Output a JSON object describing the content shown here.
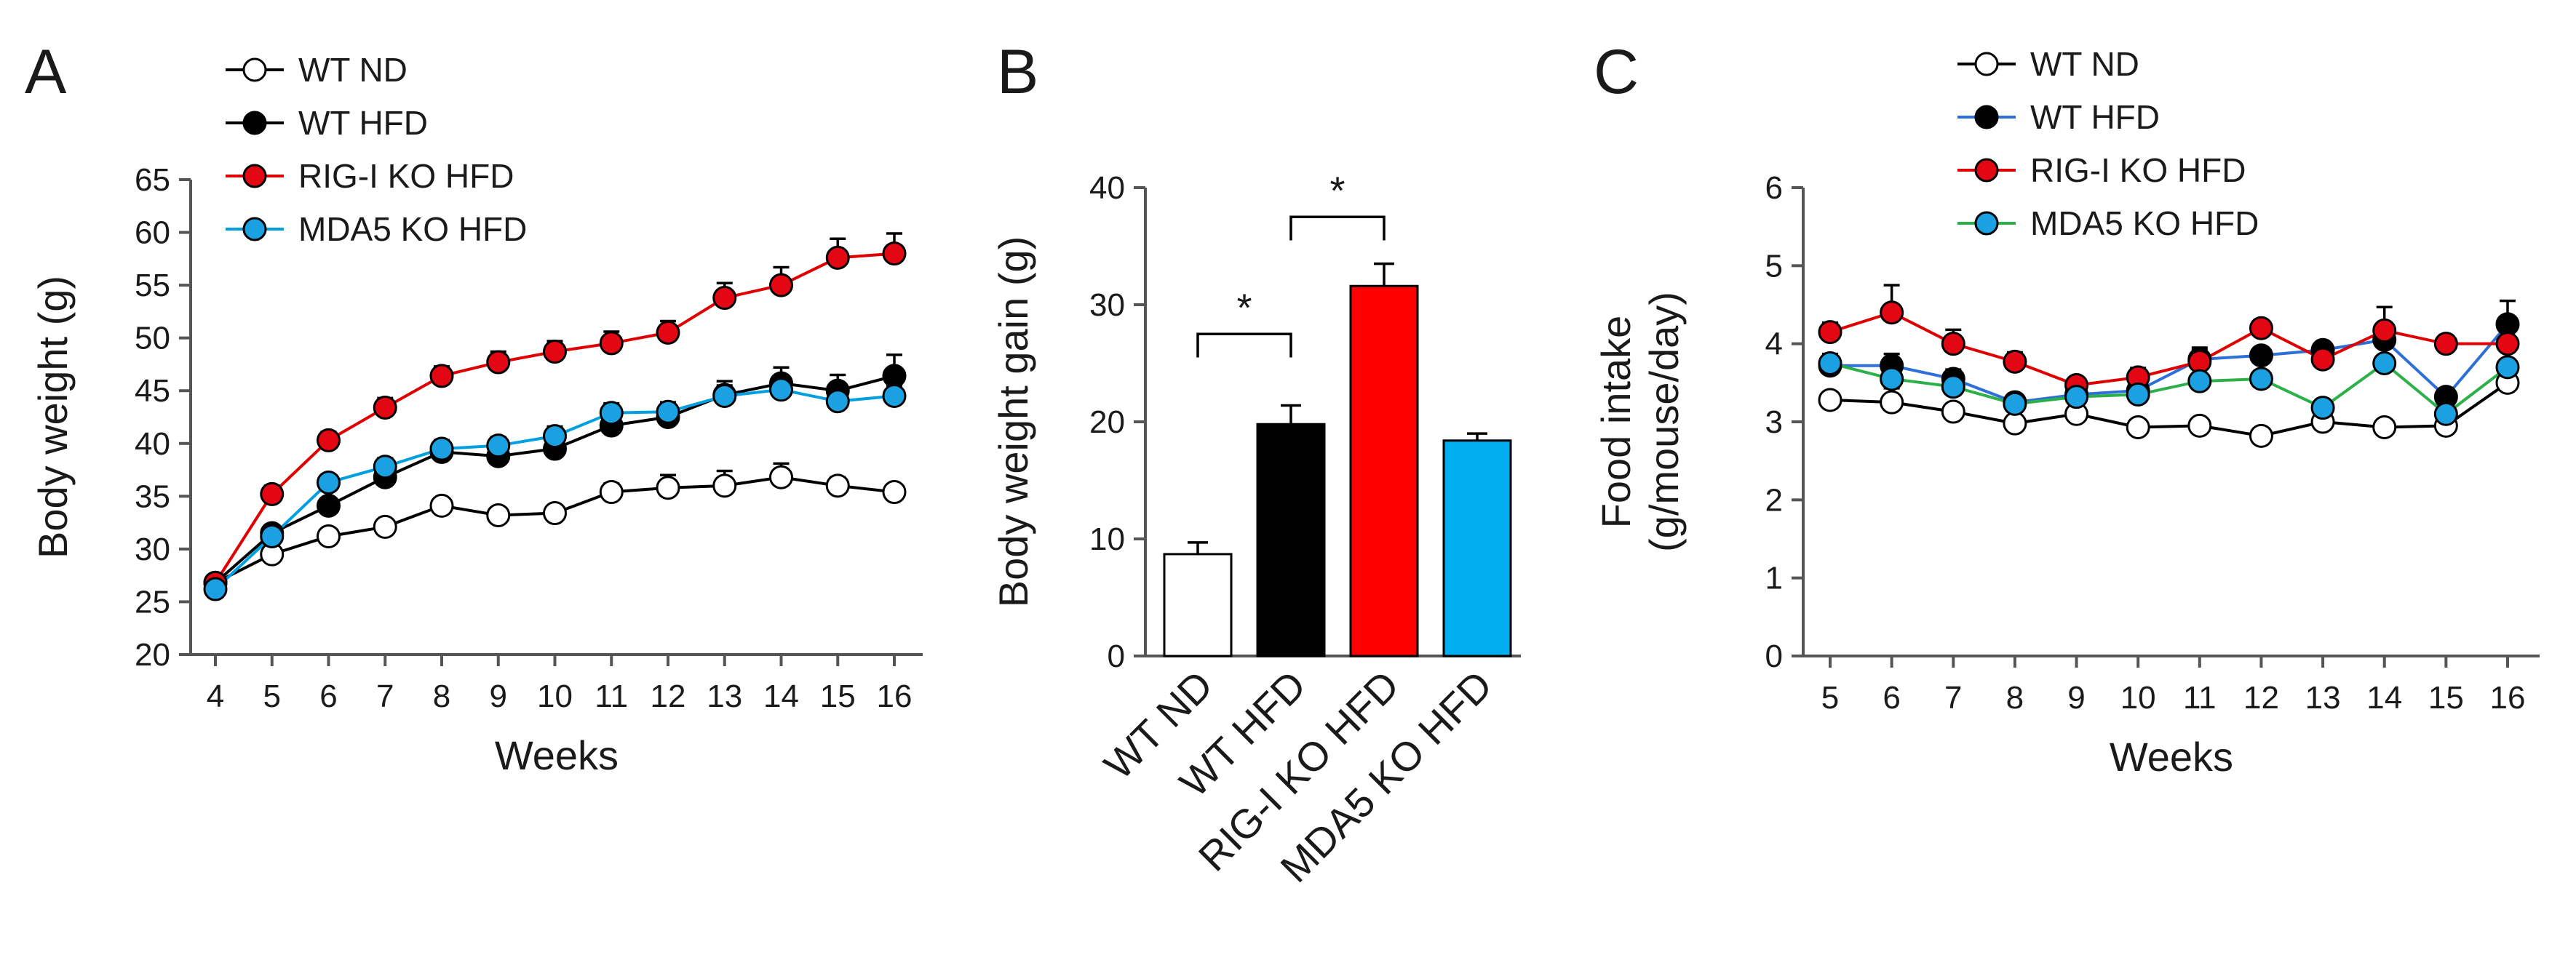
{
  "chart_data": [
    {
      "panel": "A",
      "type": "line",
      "xlabel": "Weeks",
      "ylabel": "Body weight (g)",
      "x": [
        4,
        5,
        6,
        7,
        8,
        9,
        10,
        11,
        12,
        13,
        14,
        15,
        16
      ],
      "xlim": [
        4,
        16
      ],
      "ylim": [
        20,
        65
      ],
      "yticks": [
        20,
        25,
        30,
        35,
        40,
        45,
        50,
        55,
        60,
        65
      ],
      "legend_position": "top-left",
      "series": [
        {
          "name": "WT ND",
          "color": "#000000",
          "marker_fill": "#ffffff",
          "values": [
            26.8,
            29.5,
            31.2,
            32.1,
            34.1,
            33.2,
            33.4,
            35.4,
            35.8,
            36.0,
            36.8,
            36.0,
            35.4
          ],
          "errors": [
            0.5,
            0.6,
            0.6,
            0.6,
            0.7,
            0.7,
            0.7,
            0.8,
            1.2,
            1.4,
            1.3,
            0.8,
            0.6
          ]
        },
        {
          "name": "WT HFD",
          "color": "#000000",
          "marker_fill": "#000000",
          "values": [
            26.8,
            31.5,
            34.1,
            36.8,
            39.2,
            38.8,
            39.5,
            41.7,
            42.5,
            44.6,
            45.7,
            45.0,
            46.4
          ],
          "errors": [
            0.5,
            0.7,
            0.7,
            0.8,
            0.8,
            1.0,
            1.0,
            1.0,
            1.0,
            1.3,
            1.5,
            1.5,
            2.0
          ]
        },
        {
          "name": "RIG-I KO HFD",
          "color": "#e00000",
          "marker_fill": "#e30613",
          "values": [
            26.8,
            35.2,
            40.3,
            43.4,
            46.4,
            47.7,
            48.7,
            49.5,
            50.5,
            53.8,
            55.0,
            57.6,
            58.0
          ],
          "errors": [
            0.5,
            0.8,
            0.8,
            0.9,
            0.9,
            1.0,
            1.0,
            1.1,
            1.1,
            1.4,
            1.7,
            1.8,
            1.9
          ]
        },
        {
          "name": "MDA5 KO HFD",
          "color": "#00a0e0",
          "marker_fill": "#1ba1e2",
          "values": [
            26.2,
            31.2,
            36.3,
            37.8,
            39.5,
            39.8,
            40.7,
            42.9,
            43.0,
            44.5,
            45.1,
            44.0,
            44.5
          ],
          "errors": [
            0.5,
            0.6,
            0.7,
            0.8,
            0.8,
            0.8,
            0.9,
            0.9,
            0.9,
            1.0,
            1.0,
            1.0,
            1.0
          ]
        }
      ]
    },
    {
      "panel": "B",
      "type": "bar",
      "xlabel": "",
      "ylabel": "Body weight gain (g)",
      "categories": [
        "WT ND",
        "WT HFD",
        "RIG-I KO HFD",
        "MDA5 KO HFD"
      ],
      "values": [
        8.7,
        19.8,
        31.6,
        18.4
      ],
      "errors": [
        1.0,
        1.6,
        1.9,
        0.6
      ],
      "colors": [
        "#ffffff",
        "#000000",
        "#ff0000",
        "#00aeef"
      ],
      "ylim": [
        0,
        40
      ],
      "yticks": [
        0,
        10,
        20,
        30,
        40
      ],
      "significance": [
        {
          "between": [
            "WT ND",
            "WT HFD"
          ],
          "label": "*"
        },
        {
          "between": [
            "WT HFD",
            "RIG-I KO HFD"
          ],
          "label": "*"
        }
      ]
    },
    {
      "panel": "C",
      "type": "line",
      "xlabel": "Weeks",
      "ylabel": "Food intake (g/mouse/day)",
      "x": [
        5,
        6,
        7,
        8,
        9,
        10,
        11,
        12,
        13,
        14,
        15,
        16
      ],
      "xlim": [
        5,
        16
      ],
      "ylim": [
        0,
        6
      ],
      "yticks": [
        0,
        1,
        2,
        3,
        4,
        5,
        6
      ],
      "legend_position": "top",
      "series": [
        {
          "name": "WT ND",
          "color": "#000000",
          "marker_fill": "#ffffff",
          "values": [
            3.28,
            3.25,
            3.13,
            2.98,
            3.1,
            2.93,
            2.95,
            2.82,
            3.0,
            2.93,
            2.95,
            3.5
          ],
          "errors": [
            0.1,
            0.18,
            0.1,
            0.08,
            0.08,
            0.08,
            0.07,
            0.07,
            0.08,
            0.08,
            0.08,
            0.1
          ]
        },
        {
          "name": "WT HFD",
          "color": "#2e6fd8",
          "marker_fill": "#000000",
          "values": [
            3.72,
            3.72,
            3.55,
            3.25,
            3.35,
            3.4,
            3.8,
            3.85,
            3.92,
            4.05,
            3.32,
            4.25
          ],
          "errors": [
            0.12,
            0.15,
            0.12,
            0.1,
            0.1,
            0.1,
            0.15,
            0.1,
            0.1,
            0.15,
            0.1,
            0.3
          ]
        },
        {
          "name": "RIG-I KO HFD",
          "color": "#e00000",
          "marker_fill": "#e30613",
          "values": [
            4.15,
            4.4,
            4.0,
            3.77,
            3.47,
            3.57,
            3.77,
            4.2,
            3.8,
            4.17,
            4.0,
            4.0
          ],
          "errors": [
            0.12,
            0.35,
            0.18,
            0.12,
            0.1,
            0.12,
            0.15,
            0.1,
            0.1,
            0.3,
            0.08,
            0.1
          ]
        },
        {
          "name": "MDA5 KO HFD",
          "color": "#2bb04a",
          "marker_fill": "#1ba1e2",
          "values": [
            3.75,
            3.55,
            3.45,
            3.23,
            3.32,
            3.35,
            3.52,
            3.55,
            3.18,
            3.75,
            3.1,
            3.7
          ],
          "errors": [
            0.12,
            0.12,
            0.1,
            0.1,
            0.1,
            0.1,
            0.1,
            0.1,
            0.1,
            0.4,
            0.1,
            0.1
          ]
        }
      ]
    }
  ],
  "panels": {
    "a": "A",
    "b": "B",
    "c": "C"
  }
}
